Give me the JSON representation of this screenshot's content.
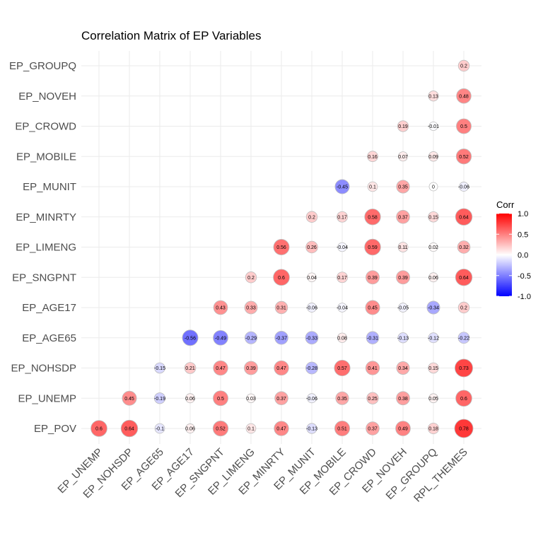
{
  "chart_data": {
    "type": "correlation-matrix",
    "title": "Correlation Matrix of EP Variables",
    "row_labels": [
      "EP_POV",
      "EP_UNEMP",
      "EP_NOHSDP",
      "EP_AGE65",
      "EP_AGE17",
      "EP_SNGPNT",
      "EP_LIMENG",
      "EP_MINRTY",
      "EP_MUNIT",
      "EP_MOBILE",
      "EP_CROWD",
      "EP_NOVEH",
      "EP_GROUPQ"
    ],
    "col_labels": [
      "EP_UNEMP",
      "EP_NOHSDP",
      "EP_AGE65",
      "EP_AGE17",
      "EP_SNGPNT",
      "EP_LIMENG",
      "EP_MINRTY",
      "EP_MUNIT",
      "EP_MOBILE",
      "EP_CROWD",
      "EP_NOVEH",
      "EP_GROUPQ",
      "RPL_THEMES"
    ],
    "rows": [
      {
        "label": "EP_POV",
        "values": [
          0.6,
          0.64,
          -0.1,
          0.06,
          0.52,
          0.1,
          0.47,
          -0.13,
          0.51,
          0.37,
          0.49,
          0.18,
          0.78
        ]
      },
      {
        "label": "EP_UNEMP",
        "values": [
          null,
          0.45,
          -0.19,
          0.06,
          0.5,
          0.03,
          0.37,
          -0.06,
          0.35,
          0.25,
          0.38,
          0.05,
          0.6
        ]
      },
      {
        "label": "EP_NOHSDP",
        "values": [
          null,
          null,
          -0.15,
          0.21,
          0.47,
          0.39,
          0.47,
          -0.28,
          0.57,
          0.41,
          0.34,
          0.15,
          0.73
        ]
      },
      {
        "label": "EP_AGE65",
        "values": [
          null,
          null,
          null,
          -0.56,
          -0.49,
          -0.29,
          -0.37,
          -0.33,
          0.08,
          -0.31,
          -0.13,
          -0.12,
          -0.22
        ]
      },
      {
        "label": "EP_AGE17",
        "values": [
          null,
          null,
          null,
          null,
          0.43,
          0.33,
          0.31,
          -0.06,
          -0.04,
          0.45,
          -0.05,
          -0.34,
          0.2
        ]
      },
      {
        "label": "EP_SNGPNT",
        "values": [
          null,
          null,
          null,
          null,
          null,
          0.2,
          0.6,
          0.04,
          0.17,
          0.39,
          0.39,
          0.06,
          0.64
        ]
      },
      {
        "label": "EP_LIMENG",
        "values": [
          null,
          null,
          null,
          null,
          null,
          null,
          0.56,
          0.26,
          -0.04,
          0.59,
          0.11,
          0.02,
          0.32
        ]
      },
      {
        "label": "EP_MINRTY",
        "values": [
          null,
          null,
          null,
          null,
          null,
          null,
          null,
          0.2,
          0.17,
          0.58,
          0.37,
          0.15,
          0.64
        ]
      },
      {
        "label": "EP_MUNIT",
        "values": [
          null,
          null,
          null,
          null,
          null,
          null,
          null,
          null,
          -0.45,
          0.1,
          0.35,
          0,
          -0.06
        ]
      },
      {
        "label": "EP_MOBILE",
        "values": [
          null,
          null,
          null,
          null,
          null,
          null,
          null,
          null,
          null,
          0.16,
          0.07,
          0.09,
          0.52
        ]
      },
      {
        "label": "EP_CROWD",
        "values": [
          null,
          null,
          null,
          null,
          null,
          null,
          null,
          null,
          null,
          null,
          0.19,
          -0.01,
          0.5
        ]
      },
      {
        "label": "EP_NOVEH",
        "values": [
          null,
          null,
          null,
          null,
          null,
          null,
          null,
          null,
          null,
          null,
          null,
          0.13,
          0.48
        ]
      },
      {
        "label": "EP_GROUPQ",
        "values": [
          null,
          null,
          null,
          null,
          null,
          null,
          null,
          null,
          null,
          null,
          null,
          null,
          0.2
        ]
      }
    ],
    "legend": {
      "title": "Corr",
      "ticks": [
        "1.0",
        "0.5",
        "0.0",
        "-0.5",
        "-1.0"
      ],
      "range": [
        -1,
        1
      ],
      "placement": "right"
    },
    "colors": {
      "low": "#0000FF",
      "mid": "#FFFFFF",
      "high": "#FF0000",
      "outline": "#bdbdbd",
      "grid": "#ebebeb"
    },
    "grid": true
  }
}
